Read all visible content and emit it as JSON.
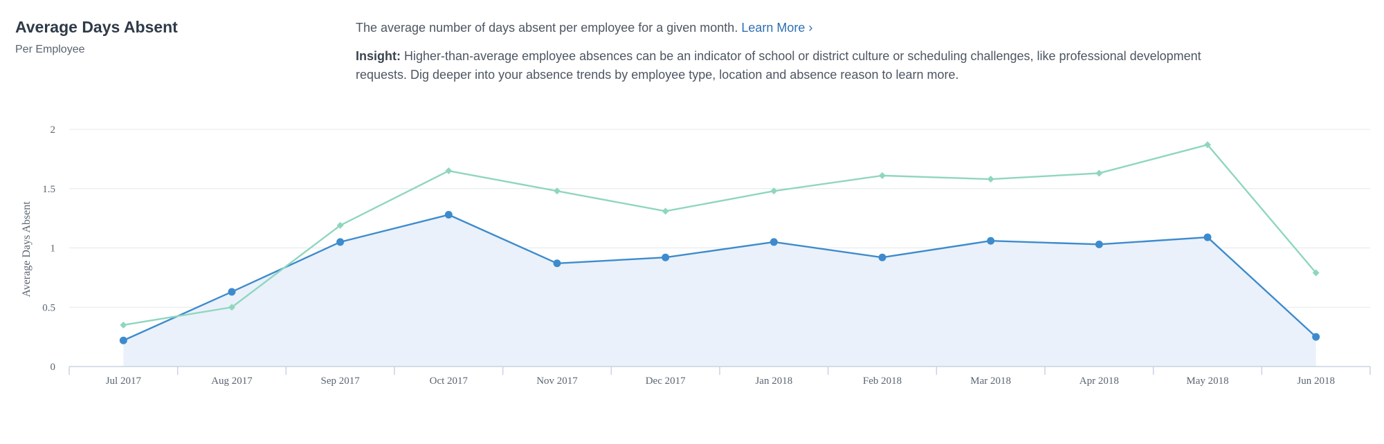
{
  "header": {
    "title": "Average Days Absent",
    "subtitle": "Per Employee"
  },
  "description": {
    "text": "The average number of days absent per employee for a given month.",
    "link_label": "Learn More ›"
  },
  "insight": {
    "label": "Insight:",
    "text": "Higher-than-average employee absences can be an indicator of school or district culture or scheduling challenges, like professional development requests. Dig deeper into your absence trends by employee type, location and absence reason to learn more."
  },
  "colors": {
    "series_primary": "#3d8bcd",
    "series_primary_fill": "#eaf1fa",
    "series_secondary": "#8fd6bf",
    "grid": "#e4e7ea",
    "axis": "#c9d3e3"
  },
  "chart_data": {
    "type": "line",
    "ylabel": "Average Days Absent",
    "xlabel": "",
    "ylim": [
      0,
      2
    ],
    "yticks": [
      0,
      0.5,
      1,
      1.5,
      2
    ],
    "grid": true,
    "categories": [
      "Jul 2017",
      "Aug 2017",
      "Sep 2017",
      "Oct 2017",
      "Nov 2017",
      "Dec 2017",
      "Jan 2018",
      "Feb 2018",
      "Mar 2018",
      "Apr 2018",
      "May 2018",
      "Jun 2018"
    ],
    "series": [
      {
        "style": "area-line-circle",
        "values": [
          0.22,
          0.63,
          1.05,
          1.28,
          0.87,
          0.92,
          1.05,
          0.92,
          1.06,
          1.03,
          1.09,
          0.25
        ]
      },
      {
        "style": "line-diamond",
        "values": [
          0.35,
          0.5,
          1.19,
          1.65,
          1.48,
          1.31,
          1.48,
          1.61,
          1.58,
          1.63,
          1.87,
          0.79
        ]
      }
    ]
  }
}
